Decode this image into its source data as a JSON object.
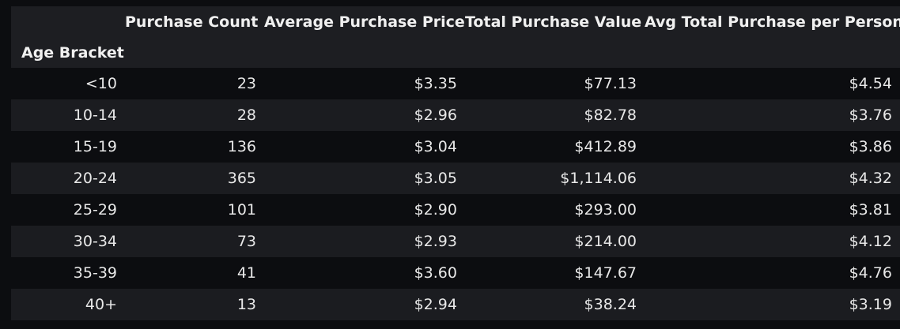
{
  "table": {
    "index_name": "Age Bracket",
    "columns": [
      "Purchase Count",
      "Average Purchase Price",
      "Total Purchase Value",
      "Avg Total Purchase per Person"
    ],
    "rows": [
      {
        "index": "<10",
        "cells": [
          "23",
          "$3.35",
          "$77.13",
          "$4.54"
        ]
      },
      {
        "index": "10-14",
        "cells": [
          "28",
          "$2.96",
          "$82.78",
          "$3.76"
        ]
      },
      {
        "index": "15-19",
        "cells": [
          "136",
          "$3.04",
          "$412.89",
          "$3.86"
        ]
      },
      {
        "index": "20-24",
        "cells": [
          "365",
          "$3.05",
          "$1,114.06",
          "$4.32"
        ]
      },
      {
        "index": "25-29",
        "cells": [
          "101",
          "$2.90",
          "$293.00",
          "$3.81"
        ]
      },
      {
        "index": "30-34",
        "cells": [
          "73",
          "$2.93",
          "$214.00",
          "$4.12"
        ]
      },
      {
        "index": "35-39",
        "cells": [
          "41",
          "$3.60",
          "$147.67",
          "$4.76"
        ]
      },
      {
        "index": "40+",
        "cells": [
          "13",
          "$2.94",
          "$38.24",
          "$3.19"
        ]
      }
    ]
  }
}
